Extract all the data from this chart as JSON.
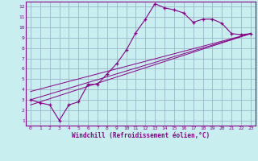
{
  "xlabel": "Windchill (Refroidissement éolien,°C)",
  "bg_color": "#c8eef0",
  "grid_color": "#9ab8c8",
  "line_color": "#880088",
  "spine_color": "#880088",
  "xlim": [
    -0.5,
    23.5
  ],
  "ylim": [
    0.5,
    12.5
  ],
  "xticks": [
    0,
    1,
    2,
    3,
    4,
    5,
    6,
    7,
    8,
    9,
    10,
    11,
    12,
    13,
    14,
    15,
    16,
    17,
    18,
    19,
    20,
    21,
    22,
    23
  ],
  "yticks": [
    1,
    2,
    3,
    4,
    5,
    6,
    7,
    8,
    9,
    10,
    11,
    12
  ],
  "line1_x": [
    0,
    1,
    2,
    3,
    4,
    5,
    6,
    7,
    8,
    9,
    10,
    11,
    12,
    13,
    14,
    15,
    16,
    17,
    18,
    19,
    20,
    21,
    22,
    23
  ],
  "line1_y": [
    3.0,
    2.7,
    2.5,
    1.0,
    2.5,
    2.8,
    4.5,
    4.5,
    5.5,
    6.5,
    7.8,
    9.5,
    10.8,
    12.3,
    11.9,
    11.7,
    11.4,
    10.5,
    10.8,
    10.8,
    10.4,
    9.4,
    9.3,
    9.4
  ],
  "line2_x": [
    0,
    23
  ],
  "line2_y": [
    3.0,
    9.4
  ],
  "line3_x": [
    0,
    23
  ],
  "line3_y": [
    2.5,
    9.4
  ],
  "line4_x": [
    0,
    23
  ],
  "line4_y": [
    3.8,
    9.4
  ]
}
